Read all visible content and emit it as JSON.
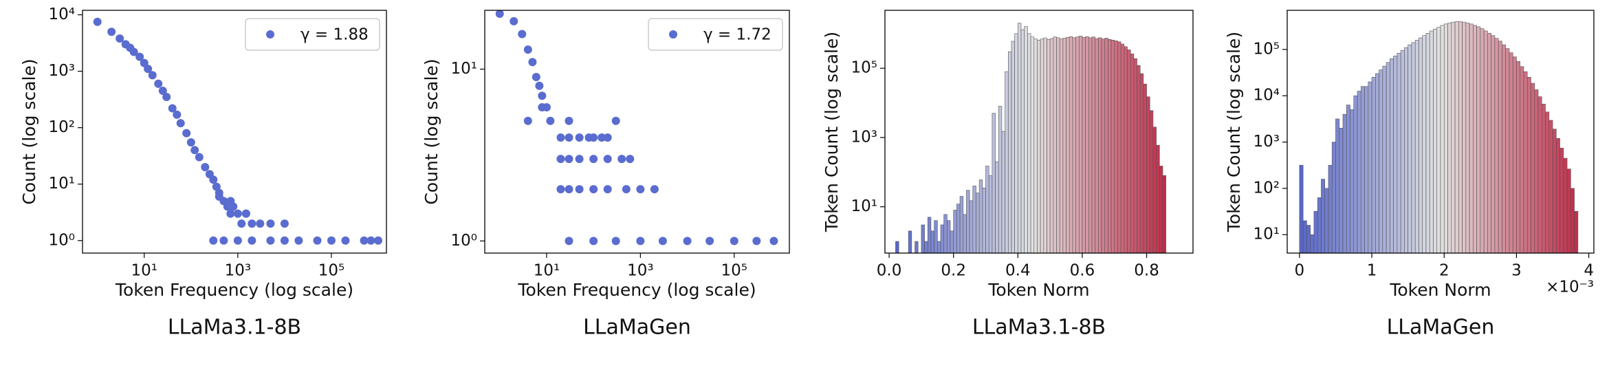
{
  "chart_data": [
    {
      "type": "scatter",
      "title": "LLaMa3.1-8B",
      "xlabel": "Token Frequency (log scale)",
      "ylabel": "Count (log scale)",
      "xscale": "log",
      "yscale": "log",
      "xlim": [
        0.48,
        1500000
      ],
      "ylim": [
        0.6,
        12000
      ],
      "xticks": [
        {
          "value": 10,
          "label": "10¹"
        },
        {
          "value": 1000,
          "label": "10³"
        },
        {
          "value": 100000,
          "label": "10⁵"
        }
      ],
      "yticks": [
        {
          "value": 1,
          "label": "10⁰"
        },
        {
          "value": 10,
          "label": "10¹"
        },
        {
          "value": 100,
          "label": "10²"
        },
        {
          "value": 1000,
          "label": "10³"
        },
        {
          "value": 10000,
          "label": "10⁴"
        }
      ],
      "legend": "upper right",
      "x": [
        1,
        2,
        3,
        4,
        5,
        6,
        8,
        10,
        12,
        15,
        20,
        25,
        30,
        40,
        50,
        60,
        80,
        100,
        120,
        150,
        200,
        250,
        300,
        350,
        400,
        500,
        600,
        700,
        800,
        1000,
        1200,
        1500,
        2000,
        3000,
        5000,
        10000,
        300,
        500,
        1000,
        2000,
        5000,
        10000,
        20000,
        50000,
        100000,
        200000,
        500000,
        700000,
        1000000,
        400,
        700,
        1500
      ],
      "series": [
        {
          "name": "γ = 1.88",
          "color": "#5a6ccf",
          "values": [
            7500,
            5000,
            3800,
            3000,
            2600,
            2200,
            1800,
            1400,
            1100,
            850,
            600,
            450,
            350,
            220,
            170,
            120,
            80,
            55,
            40,
            30,
            20,
            15,
            12,
            9,
            7,
            5,
            4,
            3,
            4,
            3,
            2,
            3,
            2,
            2,
            2,
            2,
            1,
            1,
            1,
            1,
            1,
            1,
            1,
            1,
            1,
            1,
            1,
            1,
            1,
            6,
            5,
            3
          ]
        }
      ]
    },
    {
      "type": "scatter",
      "title": "LLaMaGen",
      "xlabel": "Token Frequency (log scale)",
      "ylabel": "Count (log scale)",
      "xscale": "log",
      "yscale": "log",
      "xlim": [
        0.48,
        1500000
      ],
      "ylim": [
        0.85,
        22
      ],
      "xticks": [
        {
          "value": 10,
          "label": "10¹"
        },
        {
          "value": 1000,
          "label": "10³"
        },
        {
          "value": 100000,
          "label": "10⁵"
        }
      ],
      "yticks": [
        {
          "value": 1,
          "label": "10⁰"
        },
        {
          "value": 10,
          "label": "10¹"
        }
      ],
      "legend": "upper right",
      "x": [
        1,
        2,
        3,
        4,
        5,
        6,
        7,
        8,
        10,
        12,
        4,
        8,
        30,
        300,
        20,
        30,
        50,
        80,
        100,
        150,
        200,
        20,
        30,
        50,
        100,
        200,
        400,
        600,
        20,
        30,
        50,
        100,
        200,
        500,
        1000,
        2000,
        30,
        100,
        300,
        1000,
        3000,
        10000,
        30000,
        100000,
        300000,
        700000
      ],
      "series": [
        {
          "name": "γ = 1.72",
          "color": "#5a6ccf",
          "values": [
            21,
            19,
            16,
            13,
            11,
            9,
            8,
            7,
            6,
            5,
            5,
            6,
            5,
            5,
            4,
            4,
            4,
            4,
            4,
            4,
            4,
            3,
            3,
            3,
            3,
            3,
            3,
            3,
            2,
            2,
            2,
            2,
            2,
            2,
            2,
            2,
            1,
            1,
            1,
            1,
            1,
            1,
            1,
            1,
            1,
            1
          ]
        }
      ]
    },
    {
      "type": "histogram",
      "title": "LLaMa3.1-8B",
      "xlabel": "Token Norm",
      "ylabel": "Token Count (log scale)",
      "xscale": "linear",
      "yscale": "log",
      "xlim": [
        -0.013,
        0.944
      ],
      "ylim": [
        0.46,
        4700000
      ],
      "xticks": [
        {
          "value": 0,
          "label": "0.0"
        },
        0.2,
        0.4,
        0.6,
        0.8
      ],
      "yticks": [
        {
          "value": 10,
          "label": "10¹"
        },
        {
          "value": 1000,
          "label": "10³"
        },
        {
          "value": 100000,
          "label": "10⁵"
        }
      ],
      "colormap": "coolwarm",
      "edgecolor": "#555555",
      "bins": [
        0.02,
        0.03,
        0.04,
        0.05,
        0.06,
        0.07,
        0.08,
        0.09,
        0.1,
        0.11,
        0.12,
        0.13,
        0.14,
        0.15,
        0.16,
        0.17,
        0.18,
        0.19,
        0.2,
        0.21,
        0.22,
        0.23,
        0.24,
        0.25,
        0.26,
        0.27,
        0.28,
        0.29,
        0.3,
        0.31,
        0.32,
        0.33,
        0.34,
        0.35,
        0.36,
        0.37,
        0.38,
        0.39,
        0.4,
        0.41,
        0.42,
        0.43,
        0.44,
        0.45,
        0.46,
        0.47,
        0.48,
        0.49,
        0.5,
        0.51,
        0.52,
        0.53,
        0.54,
        0.55,
        0.56,
        0.57,
        0.58,
        0.59,
        0.6,
        0.61,
        0.62,
        0.63,
        0.64,
        0.65,
        0.66,
        0.67,
        0.68,
        0.69,
        0.7,
        0.71,
        0.72,
        0.73,
        0.74,
        0.75,
        0.76,
        0.77,
        0.78,
        0.79,
        0.8,
        0.81,
        0.82,
        0.83,
        0.84,
        0.85,
        0.86
      ],
      "values": [
        1,
        0,
        0,
        0,
        2,
        0,
        1,
        0,
        3,
        1,
        5,
        2,
        4,
        1,
        3,
        6,
        4,
        2,
        8,
        12,
        20,
        6,
        30,
        15,
        40,
        25,
        60,
        35,
        150,
        80,
        5000,
        200,
        8000,
        1500,
        80000,
        300000,
        600000,
        1000000,
        2000000,
        1300000,
        1600000,
        1000000,
        800000,
        700000,
        650000,
        700000,
        750000,
        680000,
        720000,
        800000,
        760000,
        700000,
        740000,
        780000,
        820000,
        760000,
        800000,
        850000,
        780000,
        820000,
        760000,
        800000,
        720000,
        760000,
        700000,
        740000,
        680000,
        650000,
        620000,
        580000,
        500000,
        420000,
        340000,
        260000,
        190000,
        120000,
        70000,
        35000,
        15000,
        6000,
        2000,
        600,
        150,
        80
      ]
    },
    {
      "type": "histogram",
      "title": "LLaMaGen",
      "xlabel": "Token Norm",
      "ylabel": "Token Count (log scale)",
      "x_offset_label": "×10⁻³",
      "xscale": "linear",
      "yscale": "log",
      "xlim": [
        -0.17,
        4.07
      ],
      "ylim": [
        4,
        700000
      ],
      "xticks": [
        0,
        1,
        2,
        3,
        4
      ],
      "yticks": [
        {
          "value": 10,
          "label": "10¹"
        },
        {
          "value": 100,
          "label": "10²"
        },
        {
          "value": 1000,
          "label": "10³"
        },
        {
          "value": 10000,
          "label": "10⁴"
        },
        {
          "value": 100000,
          "label": "10⁵"
        }
      ],
      "colormap": "coolwarm",
      "edgecolor": "#555555",
      "bins": [
        0,
        0.05,
        0.1,
        0.15,
        0.2,
        0.25,
        0.3,
        0.35,
        0.4,
        0.45,
        0.5,
        0.55,
        0.6,
        0.65,
        0.7,
        0.75,
        0.8,
        0.85,
        0.9,
        0.95,
        1,
        1.05,
        1.1,
        1.15,
        1.2,
        1.25,
        1.3,
        1.35,
        1.4,
        1.45,
        1.5,
        1.55,
        1.6,
        1.65,
        1.7,
        1.75,
        1.8,
        1.85,
        1.9,
        1.95,
        2,
        2.05,
        2.1,
        2.15,
        2.2,
        2.25,
        2.3,
        2.35,
        2.4,
        2.45,
        2.5,
        2.55,
        2.6,
        2.65,
        2.7,
        2.75,
        2.8,
        2.85,
        2.9,
        2.95,
        3,
        3.05,
        3.1,
        3.15,
        3.2,
        3.25,
        3.3,
        3.35,
        3.4,
        3.45,
        3.5,
        3.55,
        3.6,
        3.65,
        3.7,
        3.75,
        3.8,
        3.85
      ],
      "values": [
        316,
        20,
        16,
        10,
        32,
        63,
        158,
        100,
        316,
        1000,
        3162,
        1995,
        3981,
        6310,
        5012,
        10000,
        12589,
        15849,
        15849,
        19953,
        25119,
        30200,
        36308,
        43652,
        52481,
        63096,
        72444,
        83176,
        95499,
        109648,
        125893,
        141254,
        158489,
        177828,
        199526,
        223872,
        251189,
        275423,
        301995,
        331131,
        354813,
        371535,
        389045,
        398107,
        398107,
        389045,
        371535,
        354813,
        331131,
        309030,
        281838,
        251189,
        223872,
        199526,
        173780,
        151356,
        125893,
        104713,
        85114,
        69183,
        54954,
        42658,
        33113,
        25119,
        18621,
        13490,
        9550,
        6607,
        4467,
        2951,
        1905,
        1202,
        741,
        447,
        263,
        100,
        32
      ]
    }
  ]
}
